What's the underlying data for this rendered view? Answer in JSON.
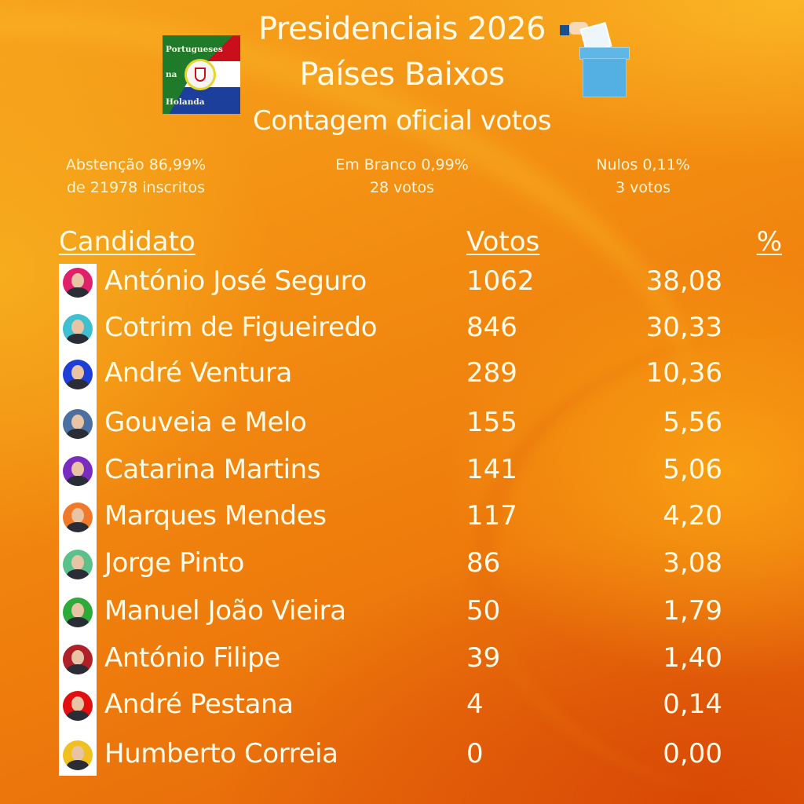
{
  "header": {
    "title_line1": "Presidenciais 2026",
    "title_line2": "Países Baixos",
    "subtitle": "Contagem oficial votos",
    "logo": {
      "line1": "Portugueses",
      "line2": "na",
      "line3": "Holanda"
    },
    "ballot_icon": "ballot-box-icon"
  },
  "stats": {
    "abstention": {
      "line1": "Abstenção 86,99%",
      "line2": "de 21978 inscritos"
    },
    "blank": {
      "line1": "Em Branco 0,99%",
      "line2": "28 votos"
    },
    "null": {
      "line1": "Nulos 0,11%",
      "line2": "3 votos"
    }
  },
  "table": {
    "headers": {
      "candidate": "Candidato",
      "votes": "Votos",
      "percent": "%"
    },
    "rows": [
      {
        "name": "António José Seguro",
        "votes": "1062",
        "percent": "38,08",
        "color": "#e0206a"
      },
      {
        "name": "Cotrim de Figueiredo",
        "votes": "846",
        "percent": "30,33",
        "color": "#3fc0d0"
      },
      {
        "name": "André Ventura",
        "votes": "289",
        "percent": "10,36",
        "color": "#1d3fd6"
      },
      {
        "name": "Gouveia e Melo",
        "votes": "155",
        "percent": "5,56",
        "color": "#4a6fa0"
      },
      {
        "name": "Catarina Martins",
        "votes": "141",
        "percent": "5,06",
        "color": "#7a2bc0"
      },
      {
        "name": "Marques Mendes",
        "votes": "117",
        "percent": "4,20",
        "color": "#f07a2a"
      },
      {
        "name": "Jorge Pinto",
        "votes": "86",
        "percent": "3,08",
        "color": "#5cc08a"
      },
      {
        "name": "Manuel João Vieira",
        "votes": "50",
        "percent": "1,79",
        "color": "#2eaa3a"
      },
      {
        "name": "António Filipe",
        "votes": "39",
        "percent": "1,40",
        "color": "#b02028"
      },
      {
        "name": "André Pestana",
        "votes": "4",
        "percent": "0,14",
        "color": "#e01010"
      },
      {
        "name": "Humberto Correia",
        "votes": "0",
        "percent": "0,00",
        "color": "#f0c020"
      }
    ]
  },
  "colors": {
    "background_orange": "#f28a10",
    "text": "#fffbe8"
  }
}
